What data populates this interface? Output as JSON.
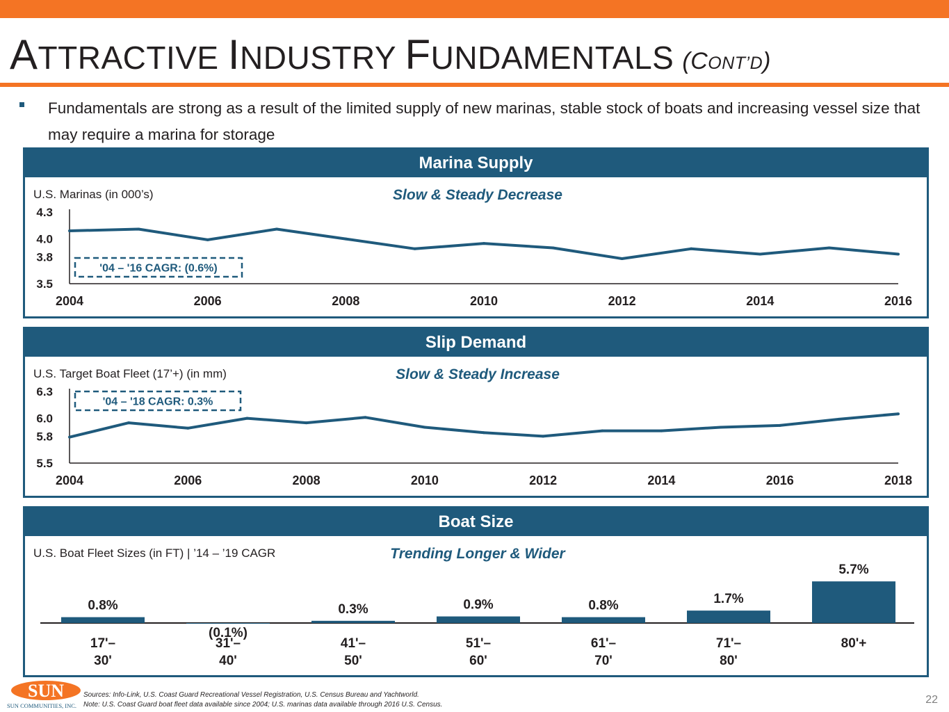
{
  "header": {
    "title_parts": [
      {
        "text": "A",
        "sc": false
      },
      {
        "text": "TTRACTIVE ",
        "sc": true
      },
      {
        "text": "I",
        "sc": false
      },
      {
        "text": "NDUSTRY ",
        "sc": true
      },
      {
        "text": "F",
        "sc": false
      },
      {
        "text": "UNDAMENTALS",
        "sc": true
      }
    ],
    "subtitle_parts": [
      {
        "text": "(C",
        "sc": false
      },
      {
        "text": "ONT’D",
        "sc": true
      },
      {
        "text": ")",
        "sc": false
      }
    ],
    "bullet": "Fundamentals are strong as a result of the limited supply of new marinas, stable stock of boats and increasing vessel size that may require a marina for storage"
  },
  "panels": {
    "marina": {
      "header": "Marina Supply",
      "subtitle": "U.S. Marinas (in 000’s)",
      "tagline": "Slow & Steady Decrease",
      "cagr_label": "'04 – '16 CAGR:  (0.6%)"
    },
    "slip": {
      "header": "Slip Demand",
      "subtitle": "U.S. Target Boat Fleet (17’+) (in mm)",
      "tagline": "Slow & Steady Increase",
      "cagr_label": "'04 – '18 CAGR:  0.3%"
    },
    "boat": {
      "header": "Boat Size",
      "subtitle": "U.S. Boat Fleet Sizes (in FT) | ’14 – ’19 CAGR",
      "tagline": "Trending Longer & Wider"
    }
  },
  "chart_data": [
    {
      "type": "line",
      "x": [
        2004,
        2005,
        2006,
        2007,
        2008,
        2009,
        2010,
        2011,
        2012,
        2013,
        2014,
        2015,
        2016
      ],
      "values": [
        4.09,
        4.11,
        3.99,
        4.11,
        4.0,
        3.89,
        3.95,
        3.9,
        3.78,
        3.89,
        3.83,
        3.9,
        3.83
      ],
      "xticks": [
        "2004",
        "2006",
        "2008",
        "2010",
        "2012",
        "2014",
        "2016"
      ],
      "yticks": [
        "3.5",
        "3.8",
        "4.0",
        "4.3"
      ],
      "ylim": [
        3.5,
        4.3
      ],
      "color": "#1f5a7c"
    },
    {
      "type": "line",
      "x": [
        2004,
        2005,
        2006,
        2007,
        2008,
        2009,
        2010,
        2011,
        2012,
        2013,
        2014,
        2015,
        2016,
        2017,
        2018
      ],
      "values": [
        5.79,
        5.95,
        5.89,
        6.0,
        5.95,
        6.01,
        5.9,
        5.84,
        5.8,
        5.86,
        5.86,
        5.9,
        5.92,
        5.99,
        6.05
      ],
      "xticks": [
        "2004",
        "2006",
        "2008",
        "2010",
        "2012",
        "2014",
        "2016",
        "2018"
      ],
      "yticks": [
        "5.5",
        "5.8",
        "6.0",
        "6.3"
      ],
      "ylim": [
        5.5,
        6.3
      ],
      "color": "#1f5a7c"
    },
    {
      "type": "bar",
      "categories": [
        "17'– 30'",
        "31'– 40'",
        "41'– 50'",
        "51'– 60'",
        "61'– 70'",
        "71'– 80'",
        "80'+"
      ],
      "category_lines": [
        [
          "17'–",
          "30'"
        ],
        [
          "31'–",
          "40'"
        ],
        [
          "41'–",
          "50'"
        ],
        [
          "51'–",
          "60'"
        ],
        [
          "61'–",
          "70'"
        ],
        [
          "71'–",
          "80'"
        ],
        [
          "80'+"
        ]
      ],
      "values": [
        0.8,
        -0.1,
        0.3,
        0.9,
        0.8,
        1.7,
        5.7
      ],
      "labels": [
        "0.8%",
        "(0.1%)",
        "0.3%",
        "0.9%",
        "0.8%",
        "1.7%",
        "5.7%"
      ],
      "color": "#1f5a7c"
    }
  ],
  "footer": {
    "logo_text": "SUN",
    "logo_sub": "SUN COMMUNITIES, INC.",
    "sources": "Sources: Info-Link, U.S. Coast Guard Recreational Vessel Registration, U.S. Census Bureau and Yachtworld.",
    "note": "Note: U.S. Coast Guard boat fleet data available since 2004; U.S. marinas data available through 2016 U.S. Census.",
    "page_number": "22",
    "brand_color": "#f47424",
    "accent_color": "#1f5a7c"
  }
}
